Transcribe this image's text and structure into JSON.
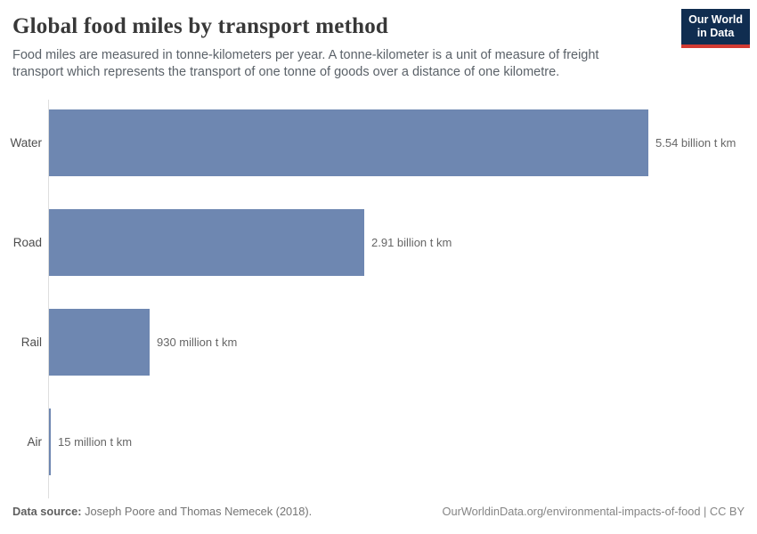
{
  "header": {
    "title": "Global food miles by transport method",
    "subtitle": "Food miles are measured in tonne-kilometers per year. A tonne-kilometer is a unit of measure of freight transport which represents the transport of one tonne of goods over a distance of one kilometre.",
    "logo": {
      "line1": "Our World",
      "line2": "in Data"
    }
  },
  "chart_data": {
    "type": "bar",
    "orientation": "horizontal",
    "title": "Global food miles by transport method",
    "categories": [
      "Water",
      "Road",
      "Rail",
      "Air"
    ],
    "values": [
      5540,
      2910,
      930,
      15
    ],
    "value_unit": "million t km",
    "value_labels": [
      "5.54 billion t km",
      "2.91 billion t km",
      "930 million t km",
      "15 million t km"
    ],
    "xlim": [
      0,
      5540
    ],
    "grid": false,
    "legend": false,
    "bar_color": "#6e87b1"
  },
  "footer": {
    "source_label": "Data source:",
    "source_text": "Joseph Poore and Thomas Nemecek (2018).",
    "citation": "OurWorldinData.org/environmental-impacts-of-food | CC BY"
  },
  "colors": {
    "bar": "#6e87b1",
    "axis_line": "#dedede",
    "logo_background": "#102d50",
    "logo_accent": "#d23a32",
    "title_text": "#383838",
    "subtitle_text": "#5b6269"
  }
}
